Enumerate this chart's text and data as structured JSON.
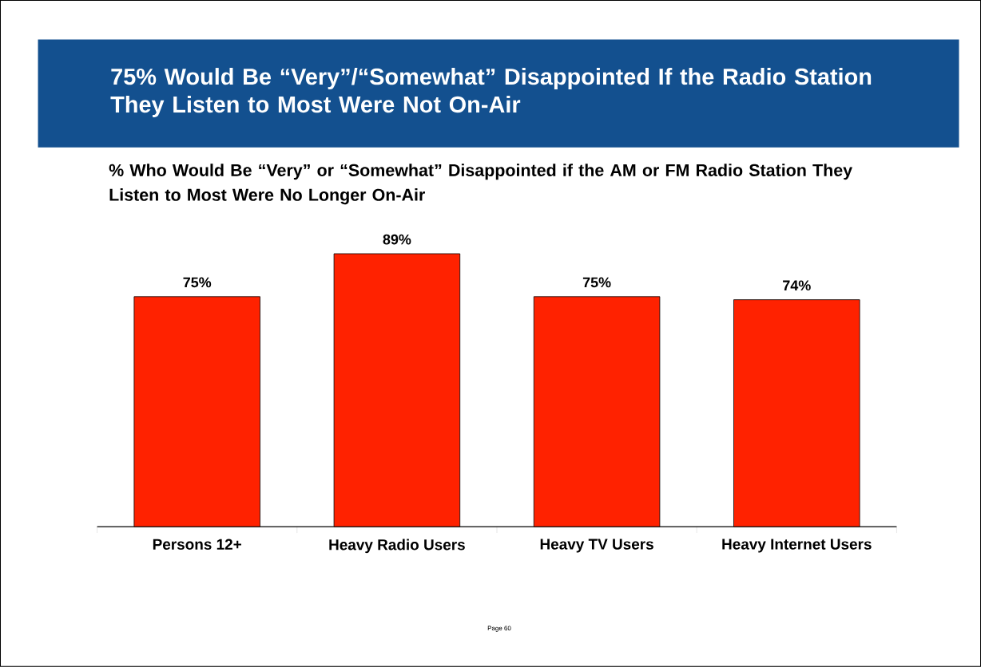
{
  "chart_data": {
    "type": "bar",
    "title": "75% Would Be “Very”/“Somewhat” Disappointed If the Radio Station They Listen to Most Were Not On-Air",
    "subtitle": "% Who Would Be “Very” or “Somewhat” Disappointed if the AM or FM Radio Station They Listen to Most Were No Longer On-Air",
    "categories": [
      "Persons 12+",
      "Heavy Radio Users",
      "Heavy TV Users",
      "Heavy Internet Users"
    ],
    "values": [
      75,
      89,
      75,
      74
    ],
    "value_labels": [
      "75%",
      "89%",
      "75%",
      "74%"
    ],
    "color": "#ff2200",
    "annotations": [
      "Page 60"
    ]
  }
}
